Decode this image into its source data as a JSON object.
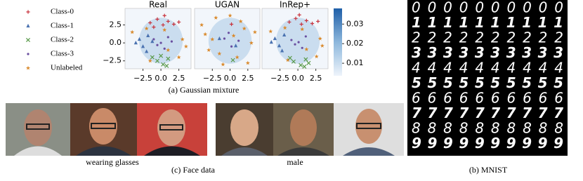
{
  "legend": [
    {
      "name": "Class-0",
      "color": "#c8323c",
      "marker": "plus"
    },
    {
      "name": "Class-1",
      "color": "#4a72b0",
      "marker": "triangle"
    },
    {
      "name": "Class-2",
      "color": "#5a9a4a",
      "marker": "cross"
    },
    {
      "name": "Class-3",
      "color": "#6a4fa0",
      "marker": "dot"
    },
    {
      "name": "Unlabeled",
      "color": "#d9892b",
      "marker": "star"
    }
  ],
  "chart_data": [
    {
      "type": "scatter",
      "title": "Real",
      "xlim": [
        -5,
        4.2
      ],
      "ylim": [
        -3.6,
        4.8
      ],
      "xticks": [
        {
          "value": -2.5,
          "label": "−2.5"
        },
        {
          "value": 0,
          "label": "0.0"
        },
        {
          "value": 2.5,
          "label": "2.5"
        }
      ],
      "yticks": [
        {
          "value": 2.5,
          "label": "2.5"
        },
        {
          "value": 0,
          "label": "0.0"
        },
        {
          "value": -2.5,
          "label": "−2.5"
        }
      ],
      "series": [
        {
          "x": [
            -1.5,
            -0.5,
            0.3,
            1.0,
            1.8,
            0.5,
            -1.0,
            2.5
          ],
          "y": [
            2.8,
            3.3,
            2.5,
            3.0,
            2.6,
            3.8,
            2.2,
            2.9
          ]
        },
        {
          "x": [
            -3.0,
            -2.5,
            -1.8,
            -3.5,
            -2.0,
            -1.2
          ],
          "y": [
            0.5,
            -0.5,
            1.0,
            0.0,
            -1.2,
            0.2
          ]
        },
        {
          "x": [
            -0.5,
            0.3,
            1.0,
            -1.2,
            0.8,
            0.0
          ],
          "y": [
            -2.5,
            -3.0,
            -2.2,
            -2.0,
            -3.2,
            -1.8
          ]
        },
        {
          "x": [
            -1.0,
            0.0,
            1.0,
            0.5,
            -0.5,
            1.5
          ],
          "y": [
            0.5,
            0.0,
            0.8,
            -0.8,
            -0.3,
            0.2
          ]
        },
        {
          "x": [
            -4.0,
            -2.0,
            1.0,
            3.0,
            2.5,
            -1.5,
            0.5,
            3.5
          ],
          "y": [
            1.5,
            2.0,
            -1.0,
            0.5,
            -2.0,
            -2.5,
            1.8,
            -0.5
          ]
        }
      ]
    },
    {
      "type": "scatter",
      "title": "UGAN",
      "xlim": [
        -5,
        4.2
      ],
      "ylim": [
        -3.6,
        4.8
      ],
      "xticks": [
        {
          "value": -2.5,
          "label": "−2.5"
        },
        {
          "value": 0,
          "label": "0.0"
        },
        {
          "value": 2.5,
          "label": "2.5"
        }
      ],
      "series": [
        {
          "x": [
            0.2
          ],
          "y": [
            2.6
          ]
        },
        {
          "x": [
            -1.5,
            0.8
          ],
          "y": [
            0.6,
            -0.4
          ]
        },
        {
          "x": [
            0.4
          ],
          "y": [
            -2.4
          ]
        },
        {
          "x": [
            -0.8,
            0.2,
            1.2,
            -0.2
          ],
          "y": [
            0.6,
            -0.5,
            0.3,
            1.4
          ]
        },
        {
          "x": [
            -4.0,
            -3.0,
            -2.0,
            -1.0,
            0.0,
            1.0,
            2.0,
            3.0,
            -2.5,
            0.5,
            2.5,
            -1.5,
            1.5,
            -3.5,
            3.5
          ],
          "y": [
            2.5,
            -1.0,
            3.5,
            -3.0,
            3.8,
            -2.0,
            2.0,
            0.0,
            0.5,
            1.0,
            -2.8,
            -1.5,
            3.0,
            1.2,
            1.5
          ]
        }
      ]
    },
    {
      "type": "scatter",
      "title": "InRep+",
      "xlim": [
        -5,
        4.2
      ],
      "ylim": [
        -3.6,
        4.8
      ],
      "xticks": [
        {
          "value": -2.5,
          "label": "−2.5"
        },
        {
          "value": 0,
          "label": "0.0"
        },
        {
          "value": 2.5,
          "label": "2.5"
        }
      ],
      "series": [
        {
          "x": [
            -1.2,
            -0.3,
            0.5,
            1.2,
            2.0,
            0.2,
            2.8
          ],
          "y": [
            2.9,
            3.4,
            2.6,
            3.1,
            2.7,
            3.9,
            3.0
          ]
        },
        {
          "x": [
            -3.2,
            -2.6,
            -1.9,
            -3.7,
            -2.2
          ],
          "y": [
            0.6,
            -0.4,
            1.1,
            0.1,
            -1.1
          ]
        },
        {
          "x": [
            -0.6,
            0.4,
            1.1,
            -1.1,
            0.9,
            1.5
          ],
          "y": [
            -2.6,
            -3.1,
            -2.3,
            -2.1,
            -3.3,
            -2.8
          ]
        },
        {
          "x": [
            -0.9,
            0.1,
            1.1,
            0.6,
            -0.4
          ],
          "y": [
            0.4,
            0.1,
            0.9,
            -0.7,
            -0.2
          ]
        },
        {
          "x": [
            -3.8,
            -1.8,
            1.2,
            3.1,
            2.6,
            -1.4,
            0.6,
            3.4
          ],
          "y": [
            1.6,
            2.1,
            -0.9,
            0.6,
            -1.9,
            -2.4,
            1.9,
            -0.4
          ]
        }
      ]
    }
  ],
  "colorbar": {
    "lim": [
      0.0036,
      0.038
    ],
    "ticks": [
      0.03,
      0.02,
      0.01
    ]
  },
  "captions": {
    "gaussian": "(a)  Gaussian mixture",
    "faces": "(c)  Face data",
    "mnist": "(b)  MNIST"
  },
  "face_labels": [
    "wearing glasses",
    "male"
  ],
  "mnist": {
    "rows": [
      "0000000000",
      "1111111111",
      "2222222222",
      "3333333333",
      "4444444444",
      "5555555555",
      "6666666666",
      "7777777777",
      "8888888888",
      "9999999999"
    ]
  }
}
